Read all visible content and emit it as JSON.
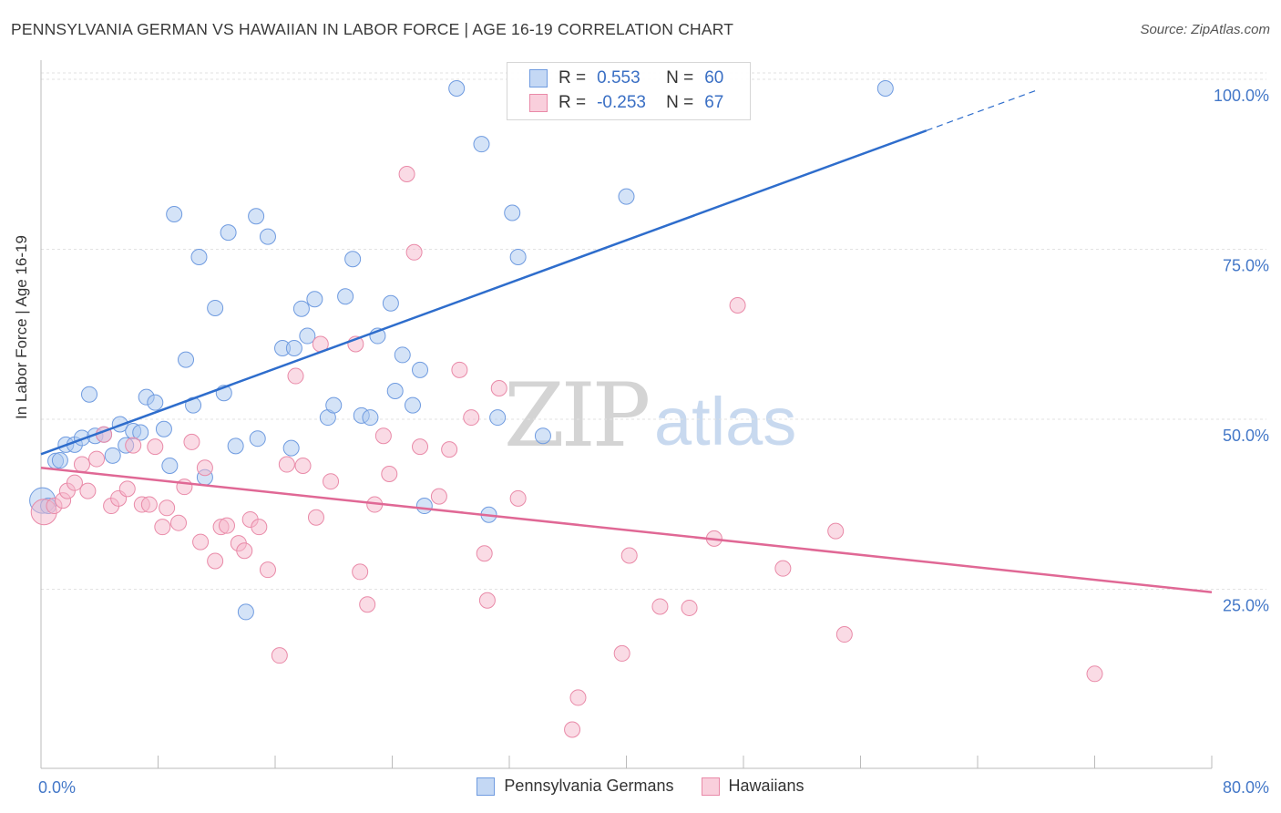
{
  "title": "PENNSYLVANIA GERMAN VS HAWAIIAN IN LABOR FORCE | AGE 16-19 CORRELATION CHART",
  "source": "Source: ZipAtlas.com",
  "watermark": {
    "zip": "ZIP",
    "atlas": "atlas"
  },
  "legend": {
    "rows": [
      {
        "r_label": "R =",
        "r_value": "0.553",
        "n_label": "N =",
        "n_value": "60"
      },
      {
        "r_label": "R =",
        "r_value": "-0.253",
        "n_label": "N =",
        "n_value": "67"
      }
    ]
  },
  "bottom_legend": {
    "blue": "Pennsylvania Germans",
    "pink": "Hawaiians"
  },
  "colors": {
    "blue_fill": "#aac7f0",
    "blue_stroke": "#6f9be0",
    "blue_line": "#2e6dcc",
    "pink_fill": "#f5b8cb",
    "pink_stroke": "#e98aa8",
    "pink_line": "#e06895",
    "tick_label": "#4478c8",
    "grid": "#e2e2e2"
  },
  "chart_data": {
    "type": "scatter",
    "title": "PENNSYLVANIA GERMAN VS HAWAIIAN IN LABOR FORCE | AGE 16-19 CORRELATION CHART",
    "xlabel": "",
    "ylabel": "In Labor Force | Age 16-19",
    "xlim": [
      0,
      80
    ],
    "ylim": [
      0,
      102
    ],
    "x_tick_labels": [
      "0.0%",
      "80.0%"
    ],
    "y_ticks": [
      25,
      50,
      75,
      100
    ],
    "y_tick_labels": [
      "25.0%",
      "50.0%",
      "75.0%",
      "100.0%"
    ],
    "grid": true,
    "legend_position": "top-center",
    "series": [
      {
        "name": "Pennsylvania Germans",
        "color": "#aac7f0",
        "trend": {
          "x": [
            0,
            60.5
          ],
          "y": [
            46.2,
            93.8
          ],
          "dashed_to": {
            "x": 68,
            "y": 99.7
          }
        },
        "points": [
          [
            0.1,
            39.4
          ],
          [
            0.5,
            38.6
          ],
          [
            1.0,
            45.2
          ],
          [
            1.3,
            45.3
          ],
          [
            1.7,
            47.6
          ],
          [
            2.3,
            47.6
          ],
          [
            2.8,
            48.6
          ],
          [
            3.3,
            55.0
          ],
          [
            3.7,
            48.9
          ],
          [
            4.3,
            49.1
          ],
          [
            4.9,
            46.0
          ],
          [
            5.4,
            50.6
          ],
          [
            5.8,
            47.5
          ],
          [
            6.3,
            49.6
          ],
          [
            6.8,
            49.4
          ],
          [
            7.2,
            54.6
          ],
          [
            7.8,
            53.8
          ],
          [
            8.4,
            49.9
          ],
          [
            8.8,
            44.5
          ],
          [
            9.1,
            81.5
          ],
          [
            9.9,
            60.1
          ],
          [
            10.4,
            53.4
          ],
          [
            10.8,
            75.2
          ],
          [
            11.2,
            42.8
          ],
          [
            11.9,
            67.7
          ],
          [
            12.5,
            55.2
          ],
          [
            12.8,
            78.8
          ],
          [
            13.3,
            47.4
          ],
          [
            14.0,
            23.0
          ],
          [
            14.7,
            81.2
          ],
          [
            14.8,
            48.5
          ],
          [
            15.5,
            78.2
          ],
          [
            16.5,
            61.8
          ],
          [
            17.1,
            47.1
          ],
          [
            17.3,
            61.8
          ],
          [
            17.8,
            67.6
          ],
          [
            18.2,
            63.6
          ],
          [
            18.7,
            69.0
          ],
          [
            19.6,
            51.6
          ],
          [
            20.0,
            53.4
          ],
          [
            20.8,
            69.4
          ],
          [
            21.3,
            74.9
          ],
          [
            21.9,
            51.9
          ],
          [
            22.5,
            51.6
          ],
          [
            23.0,
            63.6
          ],
          [
            23.9,
            68.4
          ],
          [
            24.2,
            55.5
          ],
          [
            24.7,
            60.8
          ],
          [
            25.4,
            53.4
          ],
          [
            25.9,
            58.6
          ],
          [
            26.2,
            38.6
          ],
          [
            28.4,
            100.0
          ],
          [
            30.1,
            91.8
          ],
          [
            30.6,
            37.3
          ],
          [
            31.2,
            51.6
          ],
          [
            32.2,
            81.7
          ],
          [
            32.6,
            75.2
          ],
          [
            34.3,
            48.9
          ],
          [
            40.0,
            84.1
          ],
          [
            57.7,
            100.0
          ]
        ]
      },
      {
        "name": "Hawaiians",
        "color": "#f5b8cb",
        "trend": {
          "x": [
            0,
            80
          ],
          "y": [
            44.2,
            25.9
          ]
        },
        "points": [
          [
            0.2,
            37.7
          ],
          [
            0.9,
            38.6
          ],
          [
            1.5,
            39.4
          ],
          [
            1.8,
            40.8
          ],
          [
            2.3,
            42.0
          ],
          [
            2.8,
            44.7
          ],
          [
            3.2,
            40.8
          ],
          [
            3.8,
            45.5
          ],
          [
            4.3,
            49.1
          ],
          [
            4.8,
            38.6
          ],
          [
            5.3,
            39.7
          ],
          [
            5.9,
            41.1
          ],
          [
            6.3,
            47.5
          ],
          [
            6.9,
            38.8
          ],
          [
            7.4,
            38.8
          ],
          [
            7.8,
            47.3
          ],
          [
            8.3,
            35.5
          ],
          [
            8.6,
            38.3
          ],
          [
            9.4,
            36.1
          ],
          [
            9.8,
            41.4
          ],
          [
            10.3,
            48.0
          ],
          [
            10.9,
            33.3
          ],
          [
            11.2,
            44.2
          ],
          [
            11.9,
            30.5
          ],
          [
            12.3,
            35.5
          ],
          [
            12.7,
            35.7
          ],
          [
            13.5,
            33.1
          ],
          [
            13.9,
            32.0
          ],
          [
            14.3,
            36.6
          ],
          [
            14.9,
            35.5
          ],
          [
            15.5,
            29.2
          ],
          [
            16.3,
            16.6
          ],
          [
            16.8,
            44.7
          ],
          [
            17.4,
            57.7
          ],
          [
            17.9,
            44.5
          ],
          [
            18.8,
            36.9
          ],
          [
            19.1,
            62.4
          ],
          [
            19.8,
            42.2
          ],
          [
            21.5,
            62.4
          ],
          [
            21.8,
            28.9
          ],
          [
            22.3,
            24.1
          ],
          [
            22.8,
            38.8
          ],
          [
            23.4,
            48.9
          ],
          [
            23.8,
            43.3
          ],
          [
            25.0,
            87.4
          ],
          [
            25.5,
            75.9
          ],
          [
            25.9,
            47.3
          ],
          [
            27.2,
            40.0
          ],
          [
            27.9,
            46.9
          ],
          [
            28.6,
            58.6
          ],
          [
            29.4,
            51.6
          ],
          [
            30.3,
            31.6
          ],
          [
            30.5,
            24.7
          ],
          [
            31.3,
            55.9
          ],
          [
            32.6,
            39.7
          ],
          [
            36.3,
            5.7
          ],
          [
            36.7,
            10.4
          ],
          [
            39.7,
            16.9
          ],
          [
            40.2,
            31.3
          ],
          [
            42.3,
            23.8
          ],
          [
            44.3,
            23.6
          ],
          [
            46.0,
            33.8
          ],
          [
            47.6,
            68.1
          ],
          [
            50.7,
            29.4
          ],
          [
            54.3,
            34.9
          ],
          [
            54.9,
            19.7
          ],
          [
            72.0,
            13.9
          ]
        ]
      }
    ]
  }
}
